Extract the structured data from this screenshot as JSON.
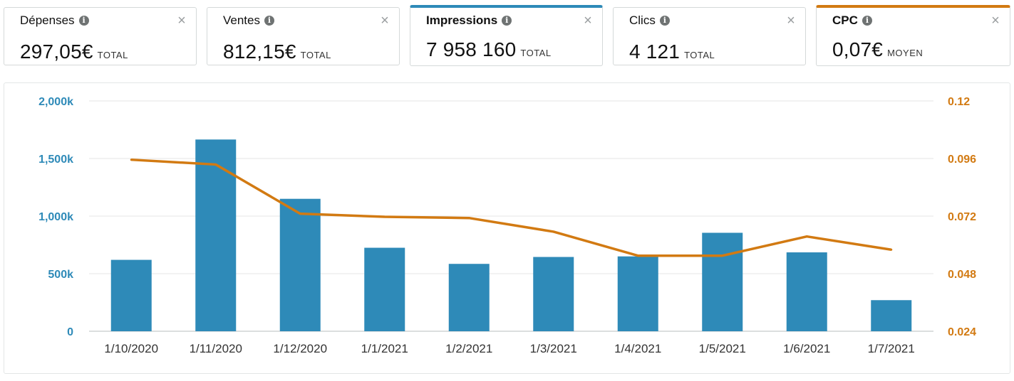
{
  "metrics": [
    {
      "title": "Dépenses",
      "value": "297,05€",
      "unit": "TOTAL"
    },
    {
      "title": "Ventes",
      "value": "812,15€",
      "unit": "TOTAL"
    },
    {
      "title": "Impressions",
      "value": "7 958 160",
      "unit": "TOTAL"
    },
    {
      "title": "Clics",
      "value": "4 121",
      "unit": "TOTAL"
    },
    {
      "title": "CPC",
      "value": "0,07€",
      "unit": "MOYEN"
    }
  ],
  "icons": {
    "info": "info-icon",
    "close": "close-icon",
    "info_glyph": "i",
    "close_glyph": "×"
  },
  "colors": {
    "impressions": "#2e8ab8",
    "cpc": "#d27a12",
    "grid": "#e6e6e6"
  },
  "chart_data": {
    "type": "bar",
    "categories": [
      "1/10/2020",
      "1/11/2020",
      "1/12/2020",
      "1/1/2021",
      "1/2/2021",
      "1/3/2021",
      "1/4/2021",
      "1/5/2021",
      "1/6/2021",
      "1/7/2021"
    ],
    "series": [
      {
        "type": "bar",
        "axis": "left",
        "values": [
          620,
          1665,
          1150,
          725,
          585,
          645,
          650,
          855,
          685,
          270
        ]
      },
      {
        "type": "line",
        "axis": "right",
        "values": [
          0.0955,
          0.0935,
          0.073,
          0.0717,
          0.0712,
          0.0655,
          0.0555,
          0.0555,
          0.0635,
          0.058
        ]
      }
    ],
    "left_axis": {
      "ticks": [
        "0",
        "500k",
        "1,000k",
        "1,500k",
        "2,000k"
      ],
      "tick_values": [
        0,
        500,
        1000,
        1500,
        2000
      ],
      "ylim": [
        0,
        2000
      ]
    },
    "right_axis": {
      "ticks": [
        "0.024",
        "0.048",
        "0.072",
        "0.096",
        "0.12"
      ],
      "tick_values": [
        0.024,
        0.048,
        0.072,
        0.096,
        0.12
      ],
      "ylim": [
        0.024,
        0.12
      ]
    },
    "grid": true,
    "legend": "none"
  }
}
